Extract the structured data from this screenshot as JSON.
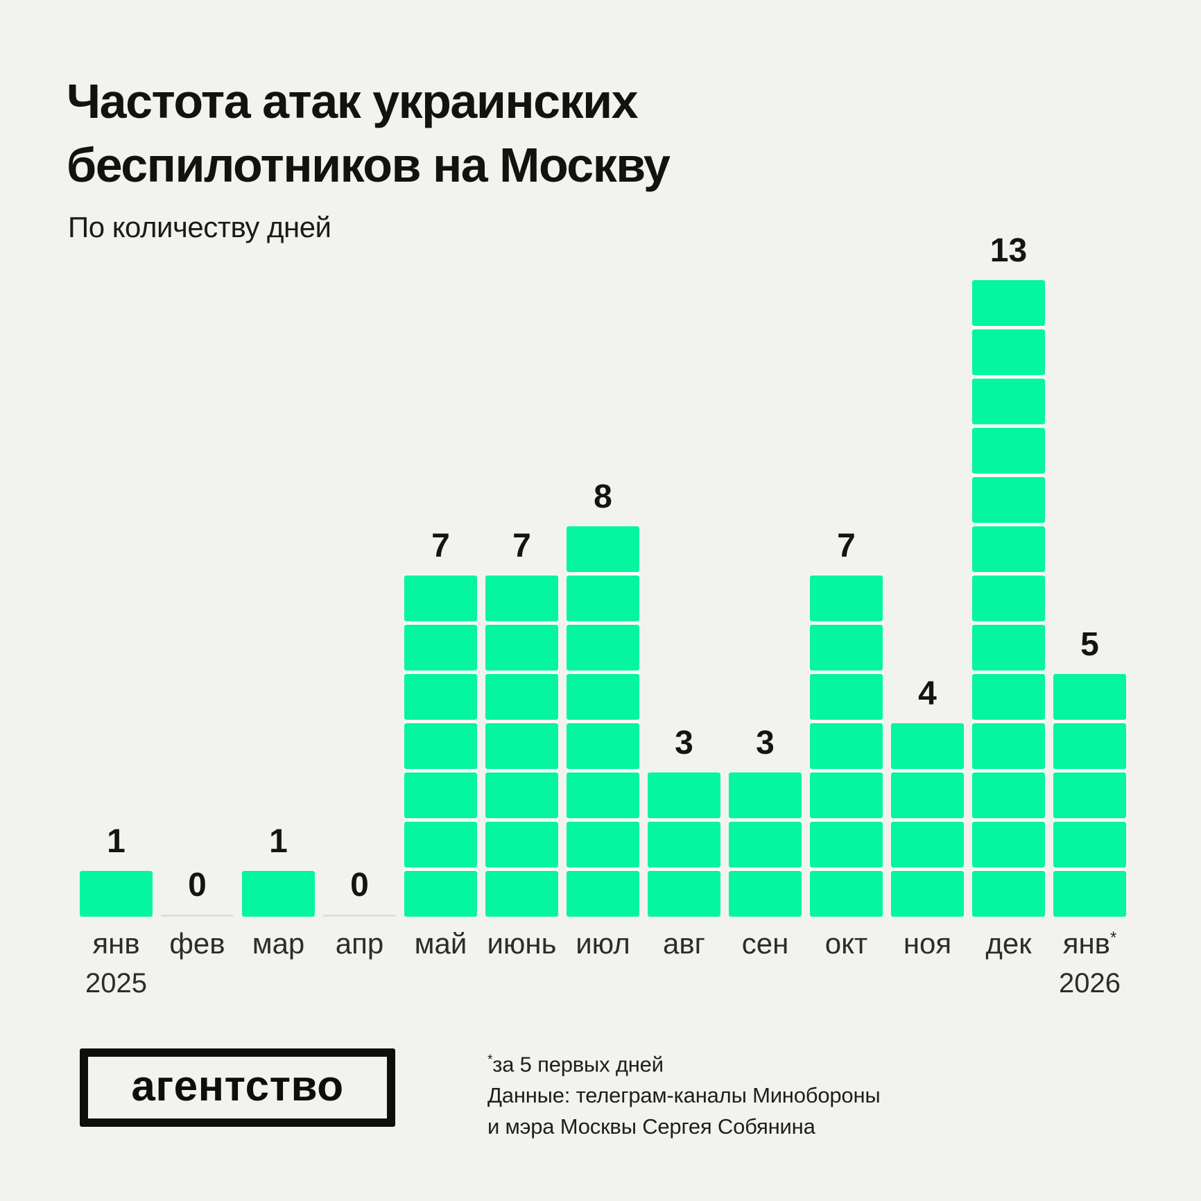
{
  "title": {
    "line1": "Частота атак украинских",
    "line2": "беспилотников на Москву"
  },
  "subtitle": "По количеству дней",
  "chart_data": {
    "type": "bar",
    "style": "stacked-square-waffle-columns",
    "title": "Частота атак украинских беспилотников на Москву",
    "subtitle": "По количеству дней",
    "xlabel": "",
    "ylabel": "",
    "unit": "дней с атаками в месяц",
    "ylim": [
      0,
      13
    ],
    "grid": false,
    "legend": false,
    "bar_color": "#05F5A1",
    "gap_color": "#FAFBFA",
    "zero_dash_color": "#DEDEDB",
    "categories": [
      "янв 2025",
      "фев",
      "мар",
      "апр",
      "май",
      "июнь",
      "июл",
      "авг",
      "сен",
      "окт",
      "ноя",
      "дек",
      "янв* 2026"
    ],
    "values": [
      1,
      0,
      1,
      0,
      7,
      7,
      8,
      3,
      3,
      7,
      4,
      13,
      5
    ],
    "columns": [
      {
        "month": "янв",
        "sup": "",
        "year": "2025",
        "value": 1
      },
      {
        "month": "фев",
        "sup": "",
        "year": "",
        "value": 0
      },
      {
        "month": "мар",
        "sup": "",
        "year": "",
        "value": 1
      },
      {
        "month": "апр",
        "sup": "",
        "year": "",
        "value": 0
      },
      {
        "month": "май",
        "sup": "",
        "year": "",
        "value": 7
      },
      {
        "month": "июнь",
        "sup": "",
        "year": "",
        "value": 7
      },
      {
        "month": "июл",
        "sup": "",
        "year": "",
        "value": 8
      },
      {
        "month": "авг",
        "sup": "",
        "year": "",
        "value": 3
      },
      {
        "month": "сен",
        "sup": "",
        "year": "",
        "value": 3
      },
      {
        "month": "окт",
        "sup": "",
        "year": "",
        "value": 7
      },
      {
        "month": "ноя",
        "sup": "",
        "year": "",
        "value": 4
      },
      {
        "month": "дек",
        "sup": "",
        "year": "",
        "value": 13
      },
      {
        "month": "янв",
        "sup": "*",
        "year": "2026",
        "value": 5
      }
    ]
  },
  "footer": {
    "logo": "агентство",
    "footnote": {
      "sup": "*",
      "line1": "за 5 первых дней",
      "line2": "Данные: телеграм-каналы Минобороны",
      "line3": "и мэра Москвы Сергея Собянина"
    }
  },
  "colors": {
    "background": "#F2F3F1",
    "bar": "#05F5A1",
    "text": "#121210",
    "axis_text": "#2c2c2a"
  }
}
